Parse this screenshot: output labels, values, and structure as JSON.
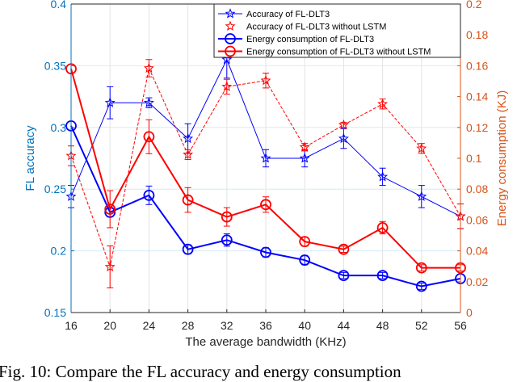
{
  "chart_data": {
    "type": "line",
    "xlabel": "The average bandwidth (KHz)",
    "ylabel_left": "FL accuracy",
    "ylabel_right": "Energy consumption (KJ)",
    "x": [
      16,
      20,
      24,
      28,
      32,
      36,
      40,
      44,
      48,
      52,
      56
    ],
    "xlim": [
      16,
      56
    ],
    "ylim_left": [
      0.15,
      0.4
    ],
    "ylim_right": [
      0,
      0.2
    ],
    "yticks_left": [
      "0.15",
      "0.2",
      "0.25",
      "0.3",
      "0.35",
      "0.4"
    ],
    "yticks_right": [
      "0",
      "0.02",
      "0.04",
      "0.06",
      "0.08",
      "0.1",
      "0.12",
      "0.14",
      "0.16",
      "0.18",
      "0.2"
    ],
    "grid": true,
    "legend_position": "top-right",
    "colors": {
      "left_axis": "#0072BD",
      "right_axis": "#D95319",
      "blue": "#0000FF",
      "red": "#FF0000"
    },
    "series": [
      {
        "name": "Accuracy of FL-DLT3",
        "axis": "left",
        "color": "#0000FF",
        "marker": "star",
        "style": "thin",
        "values": [
          0.244,
          0.32,
          0.32,
          0.291,
          0.355,
          0.275,
          0.275,
          0.291,
          0.26,
          0.244,
          0.228
        ],
        "errors": [
          0.009,
          0.013,
          0.004,
          0.012,
          0.015,
          0.007,
          0.007,
          0.008,
          0.007,
          0.009,
          0.01
        ]
      },
      {
        "name": "Accuracy of FL-DLT3 without LSTM",
        "axis": "left",
        "color": "#FF0000",
        "marker": "star",
        "style": "dashed",
        "values": [
          0.277,
          0.187,
          0.348,
          0.278,
          0.333,
          0.338,
          0.284,
          0.302,
          0.319,
          0.283,
          0.228
        ],
        "errors": [
          0.008,
          0.017,
          0.007,
          0.004,
          0.006,
          0.006,
          0.003,
          0.002,
          0.004,
          0.004,
          0.01
        ]
      },
      {
        "name": "Energy consumption of FL-DLT3",
        "axis": "right",
        "color": "#0000FF",
        "marker": "circle",
        "style": "thick",
        "values": [
          0.121,
          0.065,
          0.076,
          0.041,
          0.047,
          0.039,
          0.034,
          0.024,
          0.024,
          0.017,
          0.022
        ],
        "errors": [
          0.0,
          0.003,
          0.006,
          0.003,
          0.004,
          0.003,
          0.003,
          0.002,
          0.002,
          0.002,
          0.0
        ]
      },
      {
        "name": "Energy consumption of FL-DLT3 without LSTM",
        "axis": "right",
        "color": "#FF0000",
        "marker": "circle",
        "style": "thick",
        "values": [
          0.158,
          0.067,
          0.114,
          0.073,
          0.062,
          0.07,
          0.046,
          0.041,
          0.055,
          0.029,
          0.029
        ],
        "errors": [
          0.0,
          0.012,
          0.011,
          0.008,
          0.006,
          0.005,
          0.003,
          0.002,
          0.004,
          0.002,
          0.002
        ]
      }
    ]
  },
  "caption": "Fig. 10: Compare the FL accuracy and energy consumption"
}
